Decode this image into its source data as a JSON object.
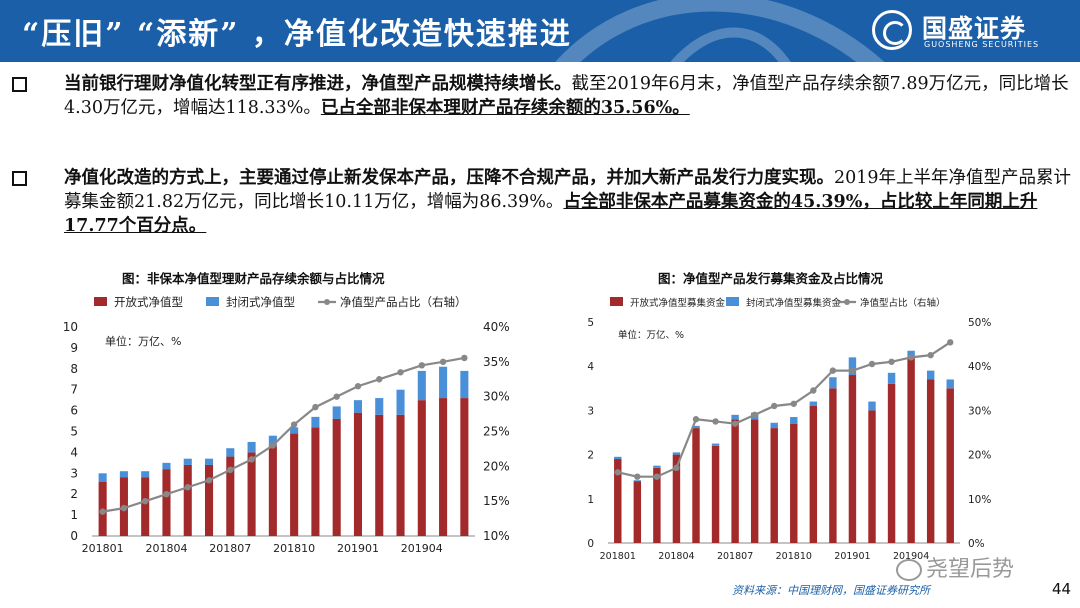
{
  "header": {
    "title": "“压旧” “添新” ，净值化改造快速推进"
  },
  "logo": {
    "name": "国盛证券",
    "sub": "GUOSHENG SECURITIES"
  },
  "bullets": [
    {
      "p1": "当前银行理财净值化转型正有序推进，净值型产品规模持续增长。",
      "p2": "截至2019年6月末，净值型产品存续余额7.89万亿元，同比增长4.30万亿元，增幅达118.33%。",
      "p3": "已占全部非保本理财产品存续余额的35.56%。"
    },
    {
      "p1": "净值化改造的方式上，主要通过停止新发保本产品，压降不合规产品，并加大新产品发行力度实现。",
      "p2": "2019年上半年净值型产品累计募集金额21.82万亿元，同比增长10.11万亿，增幅为86.39%。",
      "p3": "占全部非保本产品募集资金的45.39%，占比较上年同期上升17.77个百分点。"
    }
  ],
  "chart_titles": [
    "图：非保本净值型理财产品存续余额与占比情况",
    "图：净值型产品发行募集资金及占比情况"
  ],
  "source": "资料来源：中国理财网，国盛证券研究所",
  "page_number": "44",
  "watermark": "尧望后势",
  "chart_data": [
    {
      "type": "bar",
      "stacked": true,
      "unit_note": "单位：万亿、%",
      "categories": [
        "201801",
        "201802",
        "201803",
        "201804",
        "201805",
        "201806",
        "201807",
        "201808",
        "201809",
        "201810",
        "201811",
        "201812",
        "201901",
        "201902",
        "201903",
        "201904",
        "201905",
        "201906"
      ],
      "x_tick_labels": [
        "201801",
        "201804",
        "201807",
        "201810",
        "201901",
        "201904"
      ],
      "series": [
        {
          "name": "开放式净值型",
          "color": "#a32a2a",
          "values": [
            2.6,
            2.8,
            2.8,
            3.2,
            3.4,
            3.4,
            3.8,
            4.0,
            4.3,
            4.9,
            5.2,
            5.6,
            5.9,
            5.8,
            5.8,
            6.5,
            6.6,
            6.6
          ]
        },
        {
          "name": "封闭式净值型",
          "color": "#4a90d9",
          "values": [
            0.4,
            0.3,
            0.3,
            0.3,
            0.3,
            0.3,
            0.4,
            0.5,
            0.5,
            0.3,
            0.5,
            0.6,
            0.6,
            0.8,
            1.2,
            1.4,
            1.5,
            1.3
          ]
        },
        {
          "name": "净值型产品占比（右轴）",
          "color": "#888888",
          "axis": "right",
          "values": [
            13.5,
            14.0,
            15.0,
            16.0,
            17.0,
            18.0,
            19.5,
            21.0,
            23.0,
            26.0,
            28.5,
            30.0,
            31.5,
            32.5,
            33.5,
            34.5,
            35.0,
            35.56
          ]
        }
      ],
      "y_left": {
        "min": 0,
        "max": 10,
        "ticks": [
          0,
          1,
          2,
          3,
          4,
          5,
          6,
          7,
          8,
          9,
          10
        ]
      },
      "y_right": {
        "min": 10,
        "max": 40,
        "ticks": [
          "10%",
          "15%",
          "20%",
          "25%",
          "30%",
          "35%",
          "40%"
        ]
      },
      "legend_position": "top"
    },
    {
      "type": "bar",
      "stacked": true,
      "unit_note": "单位：万亿、%",
      "categories": [
        "201801",
        "201802",
        "201803",
        "201804",
        "201805",
        "201806",
        "201807",
        "201808",
        "201809",
        "201810",
        "201811",
        "201812",
        "201901",
        "201902",
        "201903",
        "201904",
        "201905",
        "201906"
      ],
      "x_tick_labels": [
        "201801",
        "201804",
        "201807",
        "201810",
        "201901",
        "201904"
      ],
      "series": [
        {
          "name": "开放式净值型募集资金",
          "color": "#a32a2a",
          "values": [
            1.9,
            1.4,
            1.7,
            2.0,
            2.6,
            2.2,
            2.8,
            2.8,
            2.6,
            2.7,
            3.1,
            3.5,
            3.8,
            3.0,
            3.6,
            4.2,
            3.7,
            3.5
          ]
        },
        {
          "name": "封闭式净值型募集资金",
          "color": "#4a90d9",
          "values": [
            0.05,
            0.02,
            0.05,
            0.05,
            0.05,
            0.05,
            0.1,
            0.15,
            0.12,
            0.15,
            0.1,
            0.25,
            0.4,
            0.2,
            0.25,
            0.15,
            0.2,
            0.2
          ]
        },
        {
          "name": "净值型占比（右轴）",
          "color": "#888888",
          "axis": "right",
          "values": [
            16,
            15,
            15,
            17,
            28,
            27.5,
            27,
            29,
            31,
            31.5,
            34.5,
            39,
            39,
            40.5,
            41,
            42,
            42.5,
            45.4
          ]
        }
      ],
      "y_left": {
        "min": 0,
        "max": 5,
        "ticks": [
          0,
          1,
          2,
          3,
          4,
          5
        ]
      },
      "y_right": {
        "min": 0,
        "max": 50,
        "ticks": [
          "0%",
          "10%",
          "20%",
          "30%",
          "40%",
          "50%"
        ]
      },
      "legend_position": "top"
    }
  ]
}
